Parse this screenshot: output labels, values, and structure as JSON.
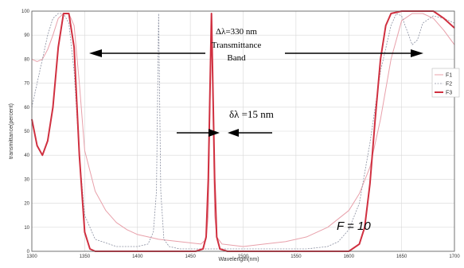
{
  "chart_data": {
    "type": "line",
    "xlabel": "Wavelength(nm)",
    "ylabel": "transmittance(percent)",
    "xlim": [
      1300,
      1700
    ],
    "ylim": [
      0,
      100
    ],
    "x_ticks": [
      1300,
      1350,
      1400,
      1450,
      1500,
      1550,
      1600,
      1650,
      1700
    ],
    "x_tick_labels": [
      "1300",
      "1350",
      "1400",
      "1450",
      "1500",
      "1550",
      "1600",
      "1650",
      "1700"
    ],
    "y_ticks": [
      0,
      10,
      20,
      30,
      40,
      50,
      60,
      70,
      80,
      90,
      100
    ],
    "y_tick_labels": [
      "0",
      "10",
      "20",
      "30",
      "40",
      "50",
      "60",
      "70",
      "80",
      "90",
      "100"
    ],
    "grid": true,
    "legend_position": "right",
    "series": [
      {
        "name": "F1",
        "color": "#e8a0aa",
        "x": [
          1300,
          1305,
          1310,
          1315,
          1320,
          1325,
          1330,
          1335,
          1340,
          1345,
          1350,
          1360,
          1370,
          1380,
          1390,
          1400,
          1420,
          1440,
          1460,
          1465,
          1467,
          1470,
          1473,
          1475,
          1480,
          1500,
          1520,
          1540,
          1560,
          1580,
          1600,
          1610,
          1620,
          1630,
          1640,
          1650,
          1660,
          1670,
          1680,
          1690,
          1700
        ],
        "y": [
          80,
          79,
          80,
          84,
          90,
          97,
          99,
          99,
          94,
          70,
          42,
          25,
          17,
          12,
          9,
          7,
          5,
          4,
          3,
          5,
          15,
          99,
          15,
          6,
          3,
          2,
          3,
          4,
          6,
          10,
          17,
          24,
          35,
          55,
          80,
          96,
          99,
          99,
          97,
          92,
          86
        ]
      },
      {
        "name": "F2",
        "color": "#8a8fa0",
        "x": [
          1300,
          1305,
          1310,
          1315,
          1320,
          1325,
          1330,
          1335,
          1340,
          1345,
          1350,
          1360,
          1380,
          1400,
          1410,
          1415,
          1418,
          1420,
          1422,
          1425,
          1430,
          1440,
          1460,
          1480,
          1500,
          1520,
          1540,
          1560,
          1580,
          1590,
          1600,
          1610,
          1620,
          1630,
          1640,
          1645,
          1650,
          1655,
          1660,
          1665,
          1670,
          1680,
          1690,
          1700
        ],
        "y": [
          60,
          70,
          80,
          90,
          97,
          99,
          99,
          95,
          75,
          40,
          15,
          5,
          2,
          2,
          3,
          8,
          25,
          99,
          25,
          5,
          2,
          1,
          1,
          1,
          1,
          1,
          1,
          1,
          2,
          4,
          9,
          20,
          45,
          75,
          94,
          99,
          98,
          92,
          86,
          88,
          95,
          98,
          97,
          95
        ]
      },
      {
        "name": "F3",
        "color": "#d03040",
        "x": [
          1300,
          1305,
          1310,
          1315,
          1320,
          1325,
          1330,
          1335,
          1340,
          1345,
          1350,
          1355,
          1360,
          1370,
          1380,
          1400,
          1420,
          1440,
          1455,
          1462,
          1465,
          1467,
          1470,
          1473,
          1475,
          1478,
          1485,
          1500,
          1520,
          1540,
          1560,
          1580,
          1600,
          1610,
          1615,
          1620,
          1625,
          1630,
          1635,
          1640,
          1650,
          1660,
          1670,
          1680,
          1690,
          1700
        ],
        "y": [
          55,
          44,
          40,
          46,
          60,
          85,
          99,
          99,
          85,
          40,
          8,
          1,
          0,
          0,
          0,
          0,
          0,
          0,
          0,
          1,
          6,
          30,
          99,
          30,
          6,
          1,
          0,
          0,
          0,
          0,
          0,
          0,
          0,
          3,
          10,
          28,
          55,
          80,
          94,
          99,
          100,
          100,
          100,
          100,
          97,
          93
        ]
      }
    ],
    "annotations": {
      "bandwidth_label": "Δλ=330 nm",
      "transmittance_label": "Transmittance",
      "band_label": "Band",
      "delta_lambda": "δλ =15 nm",
      "finesse": "F = 10"
    }
  }
}
